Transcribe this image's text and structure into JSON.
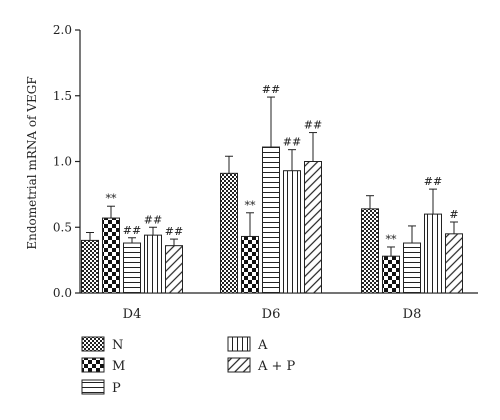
{
  "chart_data": {
    "type": "bar",
    "title": "",
    "xlabel": "",
    "ylabel": "Endometrial mRNA of VEGF",
    "ylim": [
      0,
      2.0
    ],
    "yticks": [
      "0.0",
      "0.5",
      "1.0",
      "1.5",
      "2.0"
    ],
    "categories": [
      "D4",
      "D6",
      "D8"
    ],
    "grid": false,
    "legend_position": "bottom",
    "series": [
      {
        "name": "N",
        "pattern": "checker-fine",
        "values": [
          0.4,
          0.91,
          0.64
        ],
        "errors": [
          0.06,
          0.13,
          0.1
        ],
        "annotations": [
          "",
          "",
          ""
        ]
      },
      {
        "name": "M",
        "pattern": "checker-large",
        "values": [
          0.57,
          0.43,
          0.28
        ],
        "errors": [
          0.09,
          0.18,
          0.07
        ],
        "annotations": [
          "**",
          "**",
          "**"
        ]
      },
      {
        "name": "P",
        "pattern": "horizontal-lines",
        "values": [
          0.38,
          1.11,
          0.38
        ],
        "errors": [
          0.04,
          0.38,
          0.13
        ],
        "annotations": [
          "##",
          "##",
          ""
        ]
      },
      {
        "name": "A",
        "pattern": "vertical-lines",
        "values": [
          0.44,
          0.93,
          0.6
        ],
        "errors": [
          0.06,
          0.16,
          0.19
        ],
        "annotations": [
          "##",
          "##",
          "##"
        ]
      },
      {
        "name": "A + P",
        "pattern": "diagonal-lines",
        "values": [
          0.36,
          1.0,
          0.45
        ],
        "errors": [
          0.05,
          0.22,
          0.09
        ],
        "annotations": [
          "##",
          "##",
          "#"
        ]
      }
    ]
  }
}
